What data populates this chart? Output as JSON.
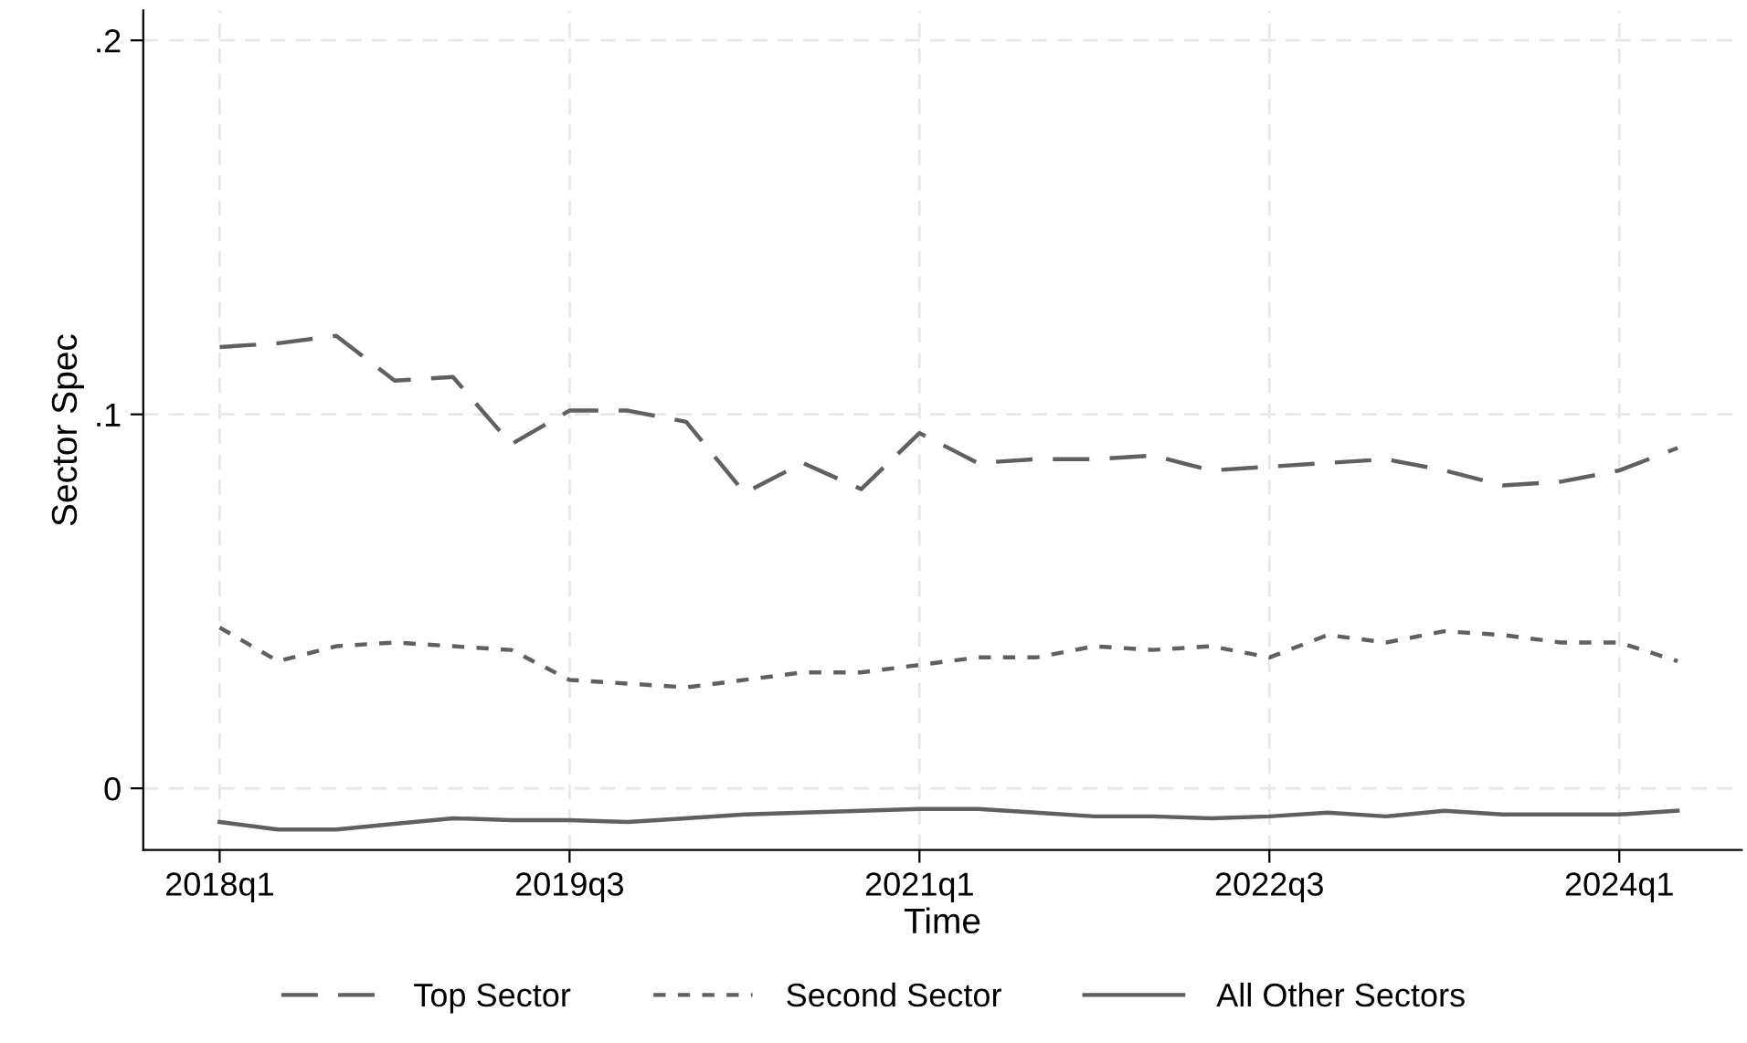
{
  "chart_data": {
    "type": "line",
    "xlabel": "Time",
    "ylabel": "Sector Spec",
    "categories": [
      "2018q1",
      null,
      null,
      null,
      null,
      null,
      "2019q3",
      null,
      null,
      null,
      null,
      null,
      "2021q1",
      null,
      null,
      null,
      null,
      null,
      "2022q3",
      null,
      null,
      null,
      null,
      null,
      "2024q1",
      null
    ],
    "ylim": [
      -0.0165,
      0.208
    ],
    "yticks": [
      {
        "value": 0,
        "label": "0"
      },
      {
        "value": 0.1,
        "label": ".1"
      },
      {
        "value": 0.2,
        "label": ".2"
      }
    ],
    "grid": true,
    "legend": "bottom",
    "marker": "none",
    "series": [
      {
        "name": "Top Sector",
        "color": "#606060",
        "line_style": "dashed",
        "values": [
          0.118,
          0.119,
          0.121,
          0.109,
          0.11,
          0.092,
          0.101,
          0.101,
          0.098,
          0.079,
          0.087,
          0.08,
          0.095,
          0.087,
          0.088,
          0.088,
          0.089,
          0.085,
          0.086,
          0.087,
          0.088,
          0.085,
          0.081,
          0.082,
          0.085,
          0.091
        ]
      },
      {
        "name": "Second Sector",
        "color": "#606060",
        "line_style": "dotted",
        "values": [
          0.043,
          0.034,
          0.038,
          0.039,
          0.038,
          0.037,
          0.029,
          0.028,
          0.027,
          0.029,
          0.031,
          0.031,
          0.033,
          0.035,
          0.035,
          0.038,
          0.037,
          0.038,
          0.035,
          0.041,
          0.039,
          0.042,
          0.041,
          0.039,
          0.039,
          0.034
        ]
      },
      {
        "name": "All Other Sectors",
        "color": "#606060",
        "line_style": "solid",
        "values": [
          -0.009,
          -0.011,
          -0.011,
          -0.0095,
          -0.008,
          -0.0085,
          -0.0085,
          -0.009,
          -0.008,
          -0.007,
          -0.0065,
          -0.006,
          -0.0055,
          -0.0055,
          -0.0065,
          -0.0075,
          -0.0075,
          -0.008,
          -0.0075,
          -0.0065,
          -0.0075,
          -0.006,
          -0.007,
          -0.007,
          -0.007,
          -0.006
        ]
      }
    ]
  }
}
